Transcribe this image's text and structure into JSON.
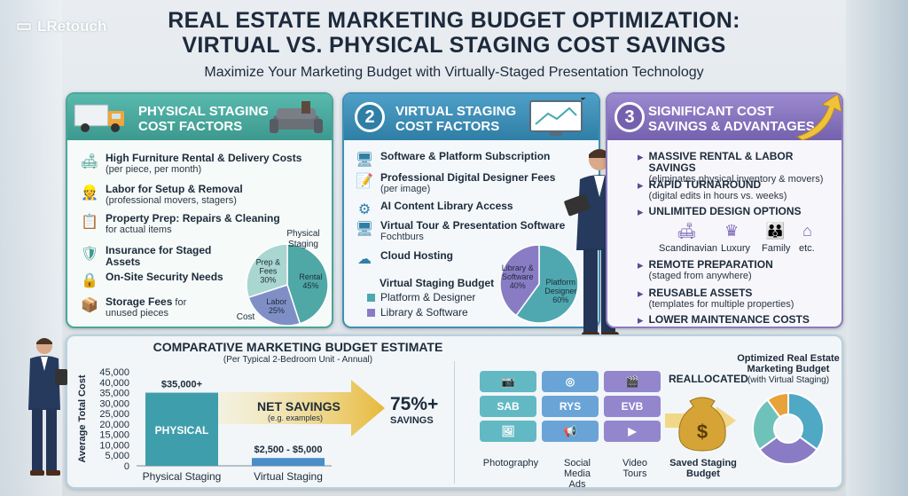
{
  "logo": {
    "text": "LRetouch"
  },
  "header": {
    "title_line1": "REAL ESTATE MARKETING BUDGET OPTIMIZATION:",
    "title_line2": "VIRTUAL VS. PHYSICAL STAGING COST SAVINGS",
    "subtitle": "Maximize Your Marketing Budget with Virtually-Staged Presentation Technology"
  },
  "physical": {
    "title_line1": "PHYSICAL STAGING",
    "title_line2": "COST FACTORS",
    "items": [
      {
        "icon": "sofa-icon",
        "title": "High Furniture Rental & Delivery Costs",
        "sub": "(per piece, per month)"
      },
      {
        "icon": "worker-icon",
        "title": "Labor for Setup & Removal",
        "sub": "(professional movers, stagers)"
      },
      {
        "icon": "checklist-icon",
        "title": "Property Prep: Repairs & Cleaning",
        "sub": "for actual items"
      },
      {
        "icon": "shield-check-icon",
        "title": "Insurance for Staged Assets",
        "sub": ""
      },
      {
        "icon": "lock-icon",
        "title": "On-Site Security Needs",
        "sub": ""
      },
      {
        "icon": "storage-box-icon",
        "title": "Storage Fees",
        "title_tail": "for",
        "sub": "unused pieces"
      }
    ],
    "pie": {
      "label_top": "Physical Staging",
      "label_bottom": "Cost",
      "slices": [
        {
          "name": "Rental",
          "value": 45,
          "color": "#4fa8a6"
        },
        {
          "name": "Labor",
          "value": 25,
          "color": "#7f8fc6"
        },
        {
          "name": "Prep & Fees",
          "value": 30,
          "color": "#a9d6d0"
        }
      ]
    }
  },
  "virtual": {
    "number": "2",
    "title_line1": "VIRTUAL STAGING",
    "title_line2": "COST FACTORS",
    "items": [
      {
        "icon": "monitor-icon",
        "title": "Software & Platform Subscription",
        "sub": ""
      },
      {
        "icon": "pencil-doc-icon",
        "title": "Professional Digital Designer Fees",
        "sub": "(per image)"
      },
      {
        "icon": "gear-icon",
        "title": "AI Content Library Access",
        "sub": ""
      },
      {
        "icon": "tour-monitor-icon",
        "title": "Virtual Tour & Presentation Software",
        "sub": "Fochtburs"
      },
      {
        "icon": "cloud-icon",
        "title": "Cloud Hosting",
        "sub": ""
      }
    ],
    "budget": {
      "title": "Virtual Staging Budget",
      "legend": [
        {
          "label": "Platform & Designer",
          "color": "#4fa8b0"
        },
        {
          "label": "Library & Software",
          "color": "#8a7cc4"
        }
      ]
    },
    "pie": {
      "slices": [
        {
          "name": "Platform Designer",
          "value": 60,
          "color": "#4fa8b0"
        },
        {
          "name": "Library & Software",
          "value": 40,
          "color": "#8a7cc4"
        }
      ]
    }
  },
  "savings": {
    "number": "3",
    "title_line1": "SIGNIFICANT COST",
    "title_line2": "SAVINGS & ADVANTAGES",
    "items": [
      {
        "title": "MASSIVE RENTAL & LABOR SAVINGS",
        "sub": "(eliminates physical inventory & movers)"
      },
      {
        "title": "RAPID TURNAROUND",
        "sub": "(digital edits in hours vs. weeks)"
      },
      {
        "title": "UNLIMITED DESIGN OPTIONS",
        "sub": ""
      },
      {
        "title": "REMOTE PREPARATION",
        "sub": "(staged from anywhere)"
      },
      {
        "title": "REUSABLE ASSETS",
        "sub": "(templates for multiple properties)"
      },
      {
        "title": "LOWER MAINTENANCE COSTS",
        "sub": ""
      }
    ],
    "styles": [
      {
        "icon": "sofa-icon",
        "label": "Scandinavian"
      },
      {
        "icon": "crown-icon",
        "label": "Luxury"
      },
      {
        "icon": "family-icon",
        "label": "Family"
      },
      {
        "icon": "house-icon",
        "label": "etc."
      }
    ]
  },
  "comparison": {
    "title": "COMPARATIVE MARKETING BUDGET ESTIMATE",
    "subtitle": "(Per Typical 2-Bedroom Unit - Annual)",
    "savings_label": "NET SAVINGS",
    "savings_sub": "(e.g. examples)",
    "savings_pct": "75%+",
    "savings_pct_label": "SAVINGS"
  },
  "chart_data": {
    "type": "bar",
    "categories": [
      "Physical Staging",
      "Virtual Staging"
    ],
    "values": [
      35000,
      3750
    ],
    "bar_labels": [
      "PHYSICAL",
      ""
    ],
    "data_labels": [
      "$35,000+",
      "$2,500 - $5,000"
    ],
    "ylabel": "Average Total Cost",
    "yticks": [
      "45,000",
      "40,000",
      "35,000",
      "30,000",
      "25,000",
      "20,000",
      "15,000",
      "10,000",
      "5,000",
      "0"
    ],
    "ylim": [
      0,
      45000
    ],
    "colors": [
      "#3f9eac",
      "#4a8ec7"
    ]
  },
  "reallocated": {
    "label": "REALLOCATED",
    "tiles": [
      {
        "icon": "camera-icon",
        "text": "",
        "color": "#62b9c4"
      },
      {
        "icon": "instagram-icon",
        "text": "",
        "color": "#6aa4d6"
      },
      {
        "icon": "clapper-icon",
        "text": "",
        "color": "#9486cd"
      },
      {
        "icon": "",
        "text": "SAB",
        "color": "#62b9c4"
      },
      {
        "icon": "",
        "text": "RYS",
        "color": "#6aa4d6"
      },
      {
        "icon": "",
        "text": "EVB",
        "color": "#9486cd"
      },
      {
        "icon": "photo-icon",
        "text": "",
        "color": "#62b9c4"
      },
      {
        "icon": "megaphone-icon",
        "text": "",
        "color": "#6aa4d6"
      },
      {
        "icon": "play-icon",
        "text": "",
        "color": "#9486cd"
      }
    ],
    "labels": [
      "Photography",
      "Social Media Ads",
      "Video Tours"
    ],
    "bag_label": "Saved Staging Budget",
    "bag_symbol": "$",
    "donut_title": "Optimized Real Estate Marketing Budget",
    "donut_sub": "(with Virtual Staging)",
    "donut": [
      {
        "value": 35,
        "color": "#4fa8c4"
      },
      {
        "value": 30,
        "color": "#8a7cc4"
      },
      {
        "value": 25,
        "color": "#6fc2b9"
      },
      {
        "value": 10,
        "color": "#e8a23a"
      }
    ]
  }
}
